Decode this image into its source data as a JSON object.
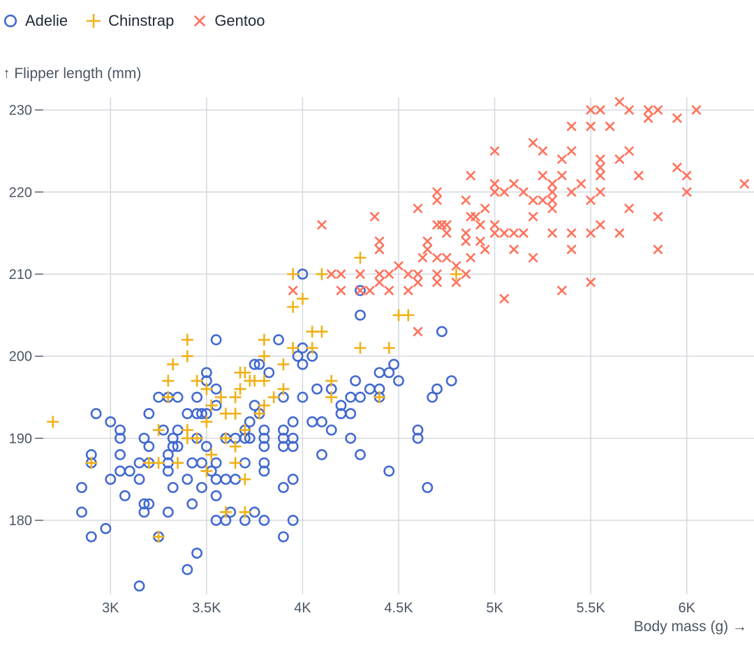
{
  "legend": [
    {
      "name": "Adelie",
      "symbol": "circle",
      "color": "#4269d0"
    },
    {
      "name": "Chinstrap",
      "symbol": "plus",
      "color": "#efb118"
    },
    {
      "name": "Gentoo",
      "symbol": "times",
      "color": "#ff725c"
    }
  ],
  "chart_data": {
    "type": "scatter",
    "title": "",
    "xlabel": "Body mass (g) →",
    "ylabel": "↑ Flipper length (mm)",
    "xlim": [
      2650,
      6350
    ],
    "ylim": [
      171,
      231.5
    ],
    "xticks": [
      3000,
      3500,
      4000,
      4500,
      5000,
      5500,
      6000
    ],
    "xtick_labels": [
      "3K",
      "3.5K",
      "4K",
      "4.5K",
      "5K",
      "5.5K",
      "6K"
    ],
    "yticks": [
      180,
      190,
      200,
      210,
      220,
      230
    ],
    "ytick_labels": [
      "180",
      "190",
      "200",
      "210",
      "220",
      "230"
    ],
    "grid": true,
    "legend_position": "top-left",
    "series": [
      {
        "name": "Adelie",
        "marker": "circle",
        "color": "#4269d0",
        "points": [
          [
            2850,
            184
          ],
          [
            2850,
            181
          ],
          [
            2900,
            188
          ],
          [
            2900,
            178
          ],
          [
            2900,
            187
          ],
          [
            2925,
            193
          ],
          [
            3000,
            185
          ],
          [
            3000,
            192
          ],
          [
            2975,
            179
          ],
          [
            3050,
            190
          ],
          [
            3050,
            191
          ],
          [
            3050,
            188
          ],
          [
            3050,
            186
          ],
          [
            3075,
            183
          ],
          [
            3100,
            186
          ],
          [
            3150,
            172
          ],
          [
            3150,
            187
          ],
          [
            3150,
            185
          ],
          [
            3175,
            190
          ],
          [
            3175,
            182
          ],
          [
            3175,
            181
          ],
          [
            3200,
            187
          ],
          [
            3200,
            182
          ],
          [
            3200,
            193
          ],
          [
            3200,
            189
          ],
          [
            3250,
            195
          ],
          [
            3250,
            178
          ],
          [
            3275,
            191
          ],
          [
            3300,
            181
          ],
          [
            3300,
            186
          ],
          [
            3300,
            187
          ],
          [
            3300,
            188
          ],
          [
            3300,
            195
          ],
          [
            3325,
            190
          ],
          [
            3325,
            189
          ],
          [
            3325,
            184
          ],
          [
            3350,
            195
          ],
          [
            3350,
            189
          ],
          [
            3350,
            191
          ],
          [
            3400,
            174
          ],
          [
            3400,
            185
          ],
          [
            3400,
            193
          ],
          [
            3425,
            187
          ],
          [
            3425,
            182
          ],
          [
            3450,
            176
          ],
          [
            3450,
            195
          ],
          [
            3450,
            193
          ],
          [
            3450,
            190
          ],
          [
            3475,
            184
          ],
          [
            3475,
            193
          ],
          [
            3475,
            187
          ],
          [
            3500,
            189
          ],
          [
            3500,
            193
          ],
          [
            3500,
            198
          ],
          [
            3500,
            197
          ],
          [
            3525,
            186
          ],
          [
            3550,
            187
          ],
          [
            3550,
            180
          ],
          [
            3550,
            183
          ],
          [
            3550,
            194
          ],
          [
            3550,
            196
          ],
          [
            3550,
            202
          ],
          [
            3550,
            185
          ],
          [
            3600,
            180
          ],
          [
            3600,
            185
          ],
          [
            3600,
            190
          ],
          [
            3625,
            181
          ],
          [
            3650,
            185
          ],
          [
            3650,
            190
          ],
          [
            3700,
            180
          ],
          [
            3700,
            187
          ],
          [
            3700,
            191
          ],
          [
            3700,
            190
          ],
          [
            3725,
            190
          ],
          [
            3725,
            192
          ],
          [
            3750,
            181
          ],
          [
            3750,
            194
          ],
          [
            3750,
            199
          ],
          [
            3775,
            199
          ],
          [
            3775,
            193
          ],
          [
            3800,
            180
          ],
          [
            3800,
            186
          ],
          [
            3800,
            187
          ],
          [
            3800,
            189
          ],
          [
            3800,
            190
          ],
          [
            3800,
            191
          ],
          [
            3825,
            198
          ],
          [
            3875,
            202
          ],
          [
            3900,
            178
          ],
          [
            3900,
            184
          ],
          [
            3900,
            189
          ],
          [
            3900,
            190
          ],
          [
            3900,
            191
          ],
          [
            3900,
            195
          ],
          [
            3950,
            180
          ],
          [
            3950,
            185
          ],
          [
            3950,
            189
          ],
          [
            3950,
            190
          ],
          [
            3950,
            192
          ],
          [
            3975,
            200
          ],
          [
            4000,
            195
          ],
          [
            4000,
            199
          ],
          [
            4000,
            201
          ],
          [
            4000,
            210
          ],
          [
            4050,
            192
          ],
          [
            4050,
            200
          ],
          [
            4075,
            196
          ],
          [
            4100,
            188
          ],
          [
            4100,
            192
          ],
          [
            4150,
            191
          ],
          [
            4150,
            196
          ],
          [
            4200,
            193
          ],
          [
            4200,
            194
          ],
          [
            4250,
            190
          ],
          [
            4250,
            193
          ],
          [
            4250,
            195
          ],
          [
            4275,
            197
          ],
          [
            4300,
            188
          ],
          [
            4300,
            195
          ],
          [
            4300,
            205
          ],
          [
            4300,
            208
          ],
          [
            4350,
            196
          ],
          [
            4400,
            195
          ],
          [
            4400,
            196
          ],
          [
            4400,
            198
          ],
          [
            4450,
            186
          ],
          [
            4450,
            198
          ],
          [
            4475,
            199
          ],
          [
            4500,
            197
          ],
          [
            4600,
            190
          ],
          [
            4600,
            191
          ],
          [
            4675,
            195
          ],
          [
            4700,
            196
          ],
          [
            4725,
            203
          ],
          [
            4650,
            184
          ],
          [
            4775,
            197
          ]
        ]
      },
      {
        "name": "Chinstrap",
        "marker": "plus",
        "color": "#efb118",
        "points": [
          [
            2700,
            192
          ],
          [
            2900,
            187
          ],
          [
            3250,
            178
          ],
          [
            3200,
            187
          ],
          [
            3250,
            187
          ],
          [
            3250,
            191
          ],
          [
            3300,
            195
          ],
          [
            3300,
            197
          ],
          [
            3325,
            199
          ],
          [
            3350,
            187
          ],
          [
            3400,
            190
          ],
          [
            3400,
            191
          ],
          [
            3400,
            200
          ],
          [
            3400,
            202
          ],
          [
            3450,
            190
          ],
          [
            3450,
            197
          ],
          [
            3500,
            186
          ],
          [
            3500,
            192
          ],
          [
            3500,
            196
          ],
          [
            3525,
            188
          ],
          [
            3525,
            194
          ],
          [
            3575,
            195
          ],
          [
            3600,
            181
          ],
          [
            3600,
            190
          ],
          [
            3600,
            193
          ],
          [
            3650,
            187
          ],
          [
            3650,
            189
          ],
          [
            3650,
            193
          ],
          [
            3650,
            195
          ],
          [
            3675,
            196
          ],
          [
            3675,
            198
          ],
          [
            3700,
            181
          ],
          [
            3700,
            185
          ],
          [
            3700,
            191
          ],
          [
            3700,
            198
          ],
          [
            3725,
            197
          ],
          [
            3750,
            197
          ],
          [
            3775,
            193
          ],
          [
            3800,
            194
          ],
          [
            3800,
            197
          ],
          [
            3800,
            200
          ],
          [
            3800,
            202
          ],
          [
            3850,
            195
          ],
          [
            3900,
            196
          ],
          [
            3900,
            199
          ],
          [
            3950,
            201
          ],
          [
            3950,
            206
          ],
          [
            3950,
            210
          ],
          [
            4000,
            207
          ],
          [
            4050,
            201
          ],
          [
            4050,
            203
          ],
          [
            4100,
            203
          ],
          [
            4100,
            210
          ],
          [
            4150,
            195
          ],
          [
            4150,
            197
          ],
          [
            4300,
            201
          ],
          [
            4300,
            212
          ],
          [
            4400,
            195
          ],
          [
            4450,
            201
          ],
          [
            4500,
            205
          ],
          [
            4550,
            205
          ],
          [
            4800,
            210
          ]
        ]
      },
      {
        "name": "Gentoo",
        "marker": "times",
        "color": "#ff725c",
        "points": [
          [
            3950,
            208
          ],
          [
            4100,
            216
          ],
          [
            4150,
            210
          ],
          [
            4200,
            208
          ],
          [
            4200,
            210
          ],
          [
            4300,
            208
          ],
          [
            4300,
            210
          ],
          [
            4350,
            208
          ],
          [
            4375,
            217
          ],
          [
            4400,
            209
          ],
          [
            4400,
            210
          ],
          [
            4400,
            213
          ],
          [
            4400,
            214
          ],
          [
            4450,
            208
          ],
          [
            4450,
            210
          ],
          [
            4500,
            211
          ],
          [
            4550,
            208
          ],
          [
            4550,
            210
          ],
          [
            4600,
            203
          ],
          [
            4600,
            209
          ],
          [
            4600,
            210
          ],
          [
            4600,
            218
          ],
          [
            4625,
            212
          ],
          [
            4650,
            213
          ],
          [
            4650,
            214
          ],
          [
            4700,
            210
          ],
          [
            4700,
            209
          ],
          [
            4700,
            212
          ],
          [
            4700,
            216
          ],
          [
            4700,
            219
          ],
          [
            4700,
            220
          ],
          [
            4725,
            216
          ],
          [
            4750,
            216
          ],
          [
            4750,
            212
          ],
          [
            4750,
            215
          ],
          [
            4800,
            209
          ],
          [
            4800,
            211
          ],
          [
            4850,
            210
          ],
          [
            4850,
            214
          ],
          [
            4850,
            215
          ],
          [
            4850,
            219
          ],
          [
            4875,
            222
          ],
          [
            4875,
            212
          ],
          [
            4875,
            217
          ],
          [
            4900,
            217
          ],
          [
            4925,
            214
          ],
          [
            4925,
            216
          ],
          [
            4950,
            213
          ],
          [
            4950,
            218
          ],
          [
            5000,
            215
          ],
          [
            5000,
            216
          ],
          [
            5000,
            220
          ],
          [
            5000,
            221
          ],
          [
            5000,
            225
          ],
          [
            5050,
            207
          ],
          [
            5050,
            215
          ],
          [
            5050,
            220
          ],
          [
            5100,
            213
          ],
          [
            5100,
            215
          ],
          [
            5100,
            221
          ],
          [
            5150,
            215
          ],
          [
            5150,
            220
          ],
          [
            5200,
            212
          ],
          [
            5200,
            217
          ],
          [
            5200,
            219
          ],
          [
            5200,
            226
          ],
          [
            5250,
            219
          ],
          [
            5250,
            222
          ],
          [
            5250,
            225
          ],
          [
            5300,
            215
          ],
          [
            5300,
            218
          ],
          [
            5300,
            219
          ],
          [
            5300,
            220
          ],
          [
            5300,
            221
          ],
          [
            5350,
            208
          ],
          [
            5350,
            222
          ],
          [
            5350,
            224
          ],
          [
            5400,
            213
          ],
          [
            5400,
            215
          ],
          [
            5400,
            220
          ],
          [
            5400,
            225
          ],
          [
            5400,
            228
          ],
          [
            5450,
            221
          ],
          [
            5500,
            209
          ],
          [
            5500,
            215
          ],
          [
            5500,
            219
          ],
          [
            5500,
            228
          ],
          [
            5500,
            230
          ],
          [
            5550,
            216
          ],
          [
            5550,
            220
          ],
          [
            5550,
            222
          ],
          [
            5550,
            223
          ],
          [
            5550,
            224
          ],
          [
            5550,
            230
          ],
          [
            5600,
            228
          ],
          [
            5650,
            215
          ],
          [
            5650,
            224
          ],
          [
            5650,
            231
          ],
          [
            5700,
            218
          ],
          [
            5700,
            225
          ],
          [
            5700,
            230
          ],
          [
            5750,
            222
          ],
          [
            5800,
            229
          ],
          [
            5800,
            230
          ],
          [
            5850,
            213
          ],
          [
            5850,
            217
          ],
          [
            5850,
            230
          ],
          [
            5950,
            223
          ],
          [
            5950,
            229
          ],
          [
            6000,
            220
          ],
          [
            6000,
            222
          ],
          [
            6050,
            230
          ],
          [
            6300,
            221
          ]
        ]
      }
    ]
  }
}
